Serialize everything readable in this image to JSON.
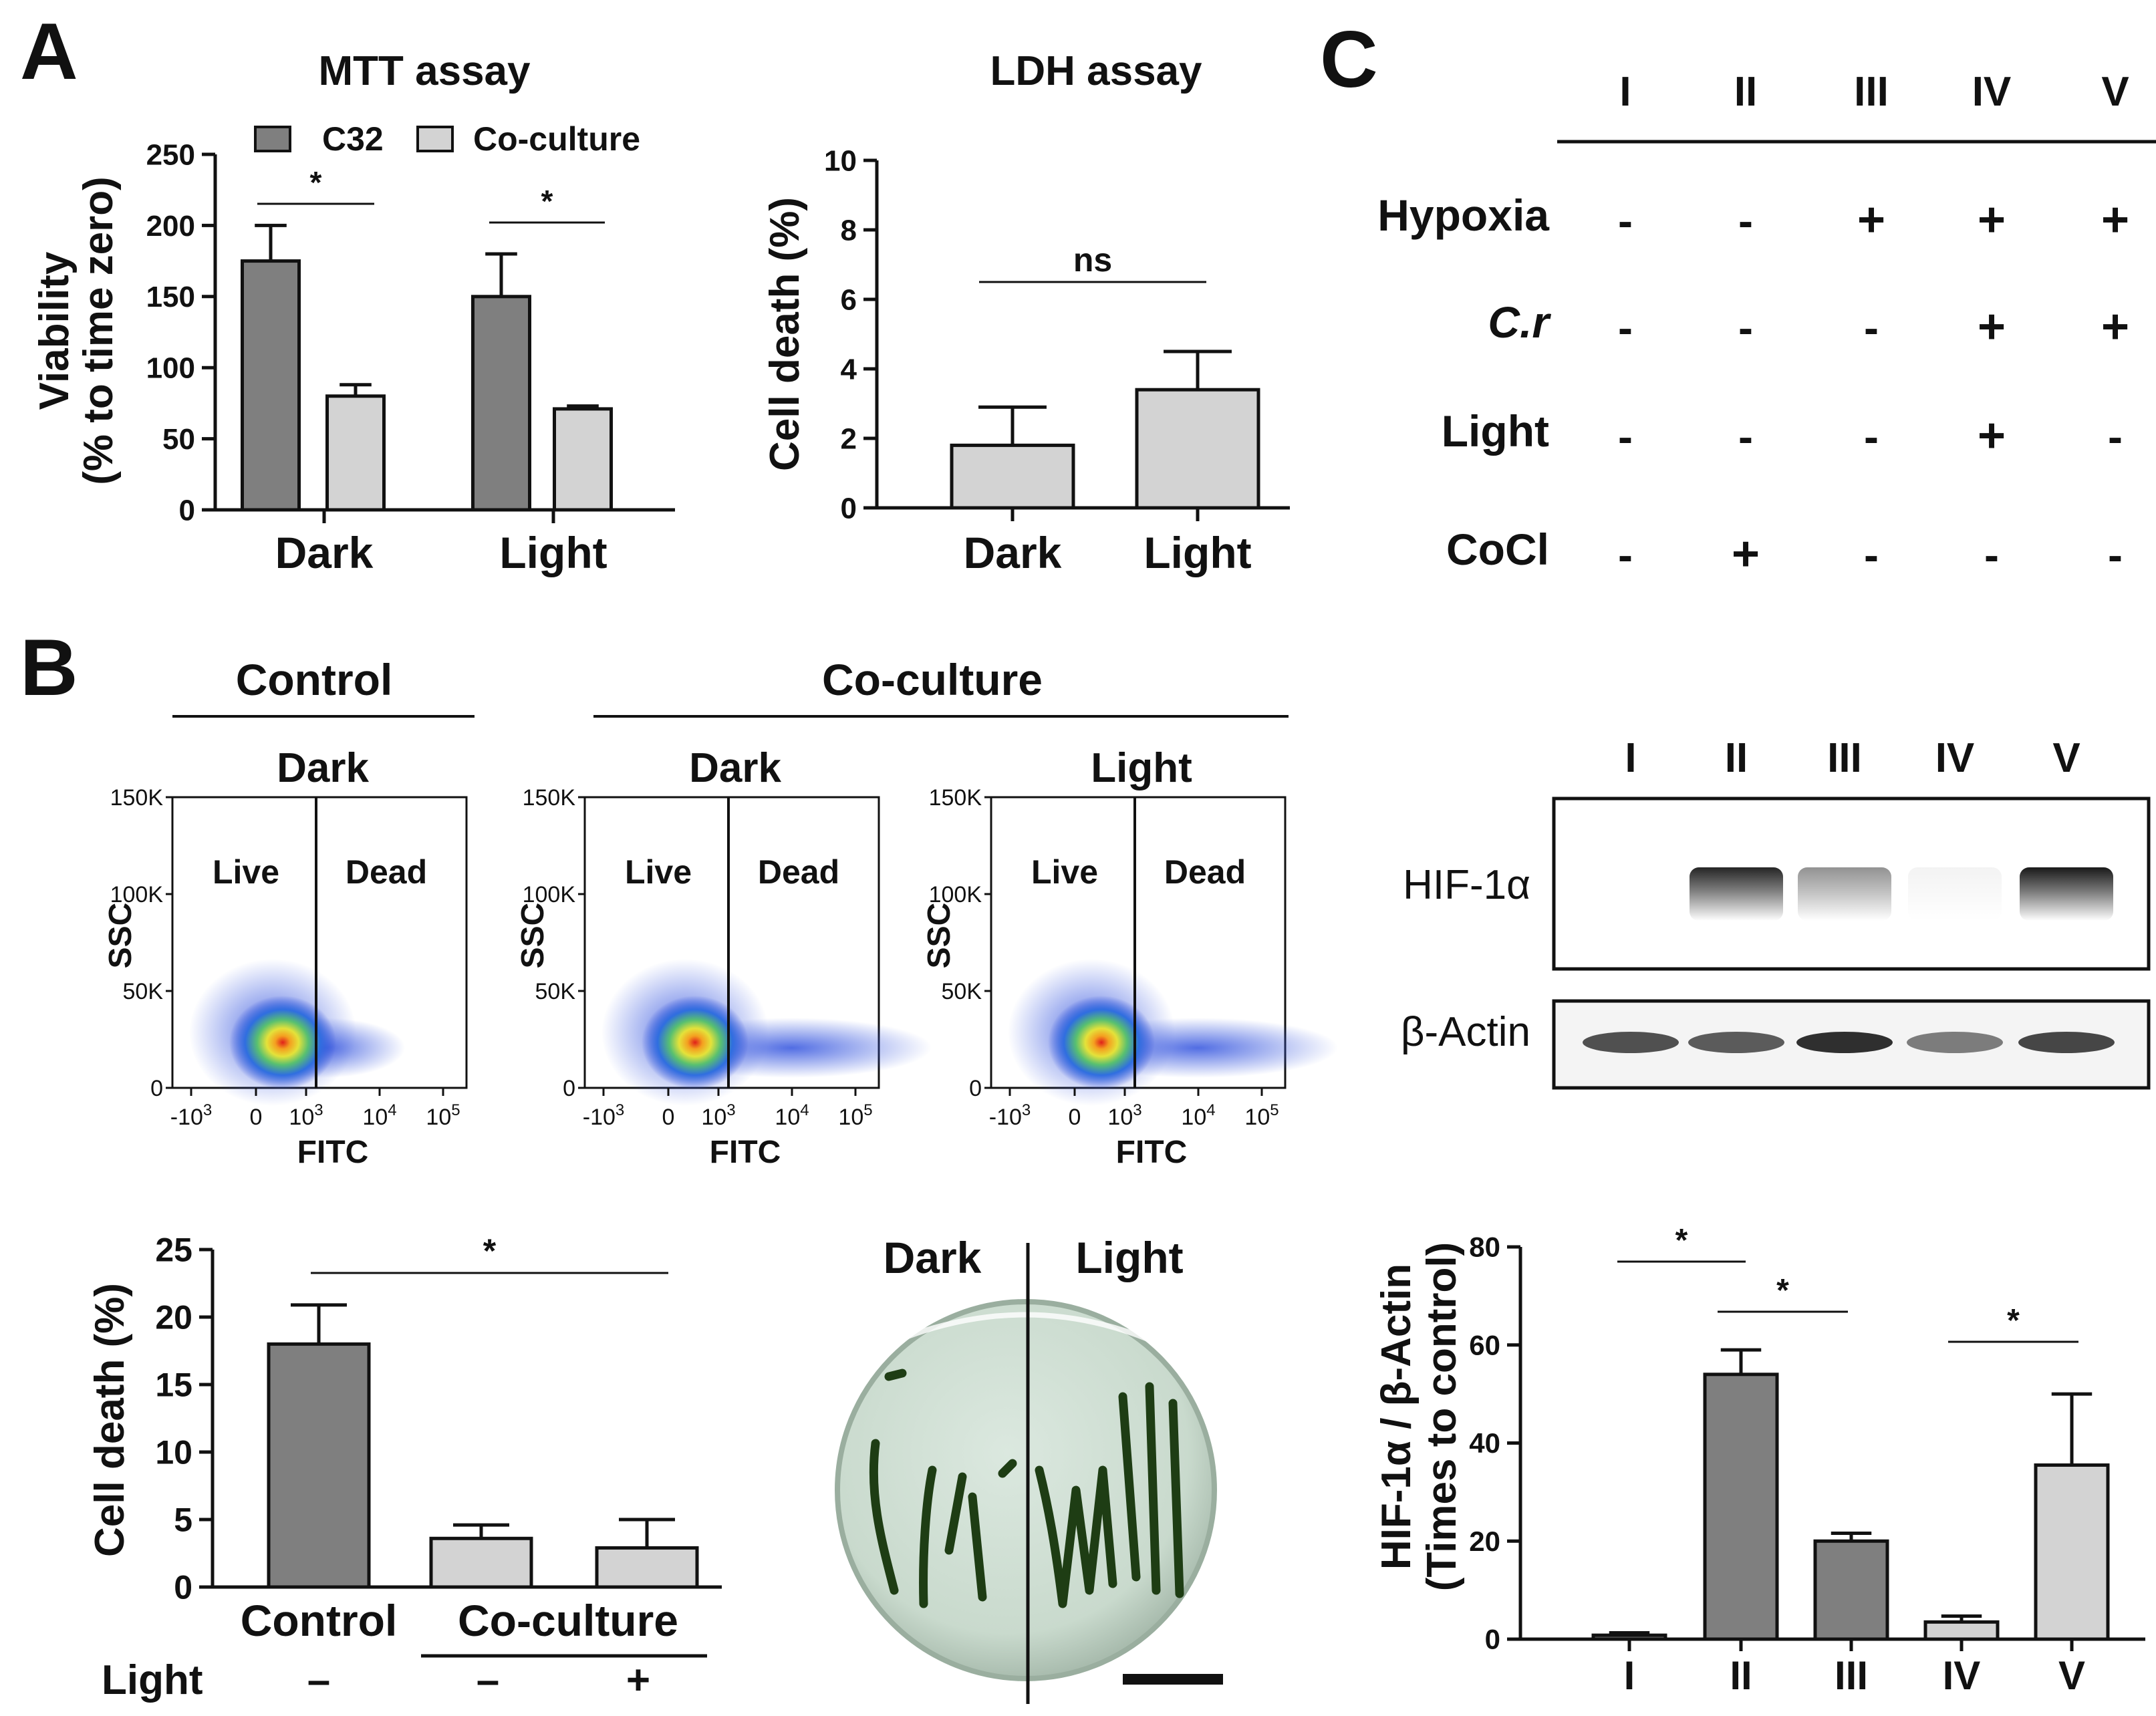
{
  "panel_labels": {
    "a": "A",
    "b": "B",
    "c": "C"
  },
  "colors": {
    "dark_bar": "#7f7f7f",
    "light_bar": "#d3d3d3",
    "band": "#1a1a1a",
    "plate": "#cfe0d4",
    "algae": "#1e3d14"
  },
  "chart_data": [
    {
      "id": "mtt",
      "type": "bar",
      "title": "MTT assay",
      "ylabel_line1": "Viability",
      "ylabel_line2": "(% to time zero)",
      "ylim": [
        0,
        250
      ],
      "yticks": [
        "0",
        "50",
        "100",
        "150",
        "200",
        "250"
      ],
      "categories": [
        "Dark",
        "Light"
      ],
      "series": [
        {
          "name": "C32",
          "values": [
            175,
            150
          ],
          "errors": [
            25,
            30
          ]
        },
        {
          "name": "Co-culture",
          "values": [
            80,
            71
          ],
          "errors": [
            8,
            2
          ]
        }
      ],
      "significance": [
        "*",
        "*"
      ]
    },
    {
      "id": "ldh",
      "type": "bar",
      "title": "LDH assay",
      "ylabel": "Cell death (%)",
      "ylim": [
        0,
        10
      ],
      "yticks": [
        "0",
        "2",
        "4",
        "6",
        "8",
        "10"
      ],
      "categories": [
        "Dark",
        "Light"
      ],
      "values": [
        1.8,
        3.4
      ],
      "errors": [
        1.1,
        1.1
      ],
      "significance": "ns"
    },
    {
      "id": "flow",
      "type": "scatter",
      "group_control": "Control",
      "group_coculture": "Co-culture",
      "xlabel": "FITC",
      "ylabel": "SSC",
      "yticks": [
        "0",
        "50K",
        "100K",
        "150K"
      ],
      "xticks": [
        {
          "b": "-10",
          "e": "3"
        },
        {
          "b": "0",
          "e": ""
        },
        {
          "b": "10",
          "e": "3"
        },
        {
          "b": "10",
          "e": "4"
        },
        {
          "b": "10",
          "e": "5"
        }
      ],
      "gate_left": "Live",
      "gate_right": "Dead",
      "plots": [
        "Dark",
        "Dark",
        "Light"
      ]
    },
    {
      "id": "celldeath",
      "type": "bar",
      "ylabel": "Cell death (%)",
      "ylim": [
        0,
        25
      ],
      "yticks": [
        "0",
        "5",
        "10",
        "15",
        "20",
        "25"
      ],
      "categories": [
        "Control",
        "Co-culture",
        "Co-culture"
      ],
      "values": [
        18,
        3.6,
        2.9
      ],
      "errors": [
        2.9,
        1.0,
        2.1
      ],
      "significance": "*",
      "light_row_label": "Light",
      "light_row": [
        "–",
        "–",
        "+"
      ],
      "xlabel_control": "Control",
      "xlabel_coculture": "Co-culture"
    },
    {
      "id": "hif",
      "type": "bar",
      "ylabel_line1": "HIF-1α / β-Actin",
      "ylabel_line2": "(Times to control)",
      "ylim": [
        0,
        80
      ],
      "yticks": [
        "0",
        "20",
        "40",
        "60",
        "80"
      ],
      "categories": [
        "I",
        "II",
        "III",
        "IV",
        "V"
      ],
      "values": [
        0.8,
        54,
        20,
        3.5,
        35.5
      ],
      "errors": [
        0.5,
        5,
        1.6,
        1.2,
        14.5
      ],
      "significance": [
        "*",
        "*",
        "*"
      ]
    }
  ],
  "plate": {
    "left": "Dark",
    "right": "Light"
  },
  "conditions": {
    "lanes": [
      "I",
      "II",
      "III",
      "IV",
      "V"
    ],
    "rows": [
      {
        "label": "Hypoxia",
        "values": [
          "-",
          "-",
          "+",
          "+",
          "+"
        ]
      },
      {
        "label": "C.r",
        "values": [
          "-",
          "-",
          "-",
          "+",
          "+"
        ]
      },
      {
        "label": "Light",
        "values": [
          "-",
          "-",
          "-",
          "+",
          "-"
        ]
      },
      {
        "label": "CoCl",
        "values": [
          "-",
          "+",
          "-",
          "-",
          "-"
        ]
      }
    ]
  },
  "blot": {
    "lanes": [
      "I",
      "II",
      "III",
      "IV",
      "V"
    ],
    "hif_label": "HIF-1α",
    "actin_label": "β-Actin"
  }
}
